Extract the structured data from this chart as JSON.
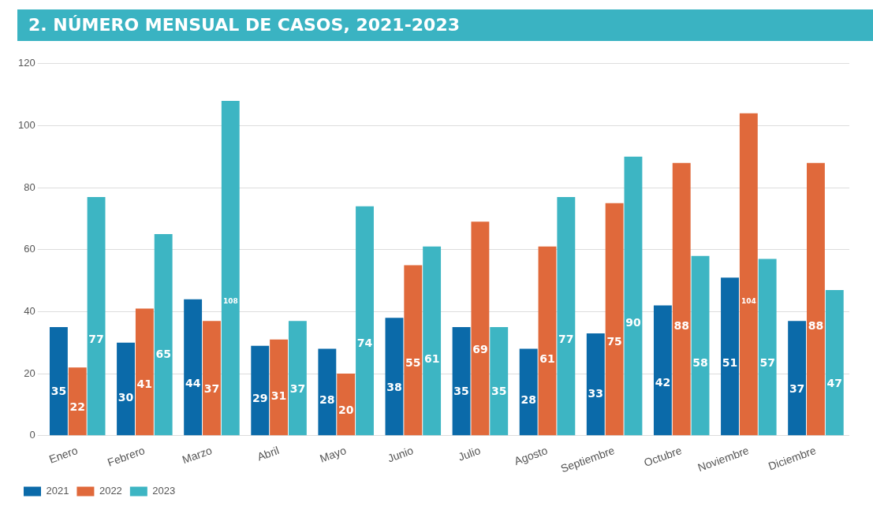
{
  "chart_data": {
    "type": "bar",
    "title": "2. NÚMERO MENSUAL DE CASOS, 2021-2023",
    "categories": [
      "Enero",
      "Febrero",
      "Marzo",
      "Abril",
      "Mayo",
      "Junio",
      "Julio",
      "Agosto",
      "Septiembre",
      "Octubre",
      "Noviembre",
      "Diciembre"
    ],
    "series": [
      {
        "name": "2021",
        "color": "#0b6aa9",
        "values": [
          35,
          30,
          44,
          29,
          28,
          38,
          35,
          28,
          33,
          42,
          51,
          37
        ]
      },
      {
        "name": "2022",
        "color": "#e0693b",
        "values": [
          22,
          41,
          37,
          31,
          20,
          55,
          69,
          61,
          75,
          88,
          104,
          88
        ]
      },
      {
        "name": "2023",
        "color": "#3db5c3",
        "values": [
          77,
          65,
          108,
          37,
          74,
          61,
          35,
          77,
          90,
          58,
          57,
          47
        ]
      }
    ],
    "ylim": [
      0,
      120
    ],
    "yticks": [
      0,
      20,
      40,
      60,
      80,
      100,
      120
    ],
    "grid": "y",
    "legend": "bottom left",
    "data_labels": true
  }
}
